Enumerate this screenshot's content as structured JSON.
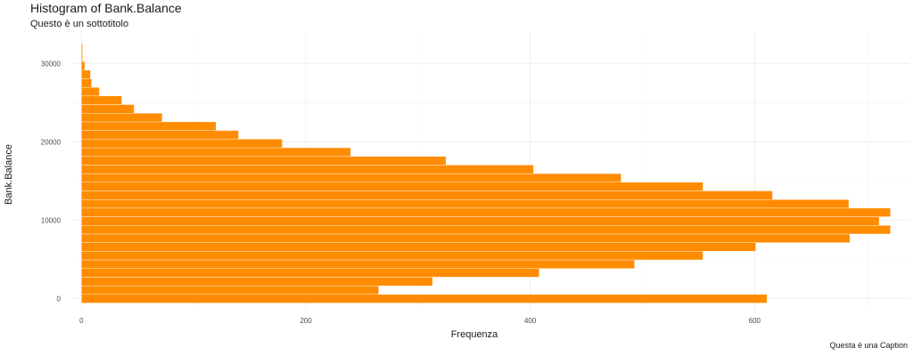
{
  "chart_data": {
    "type": "bar",
    "orientation": "horizontal",
    "title": "Histogram of Bank.Balance",
    "subtitle": "Questo è un sottotitolo",
    "caption": "Questa è una Caption",
    "xlabel": "Frequenza",
    "ylabel": "Bank.Balance",
    "xlim": [
      -9,
      738
    ],
    "ylim": [
      -1400,
      34000
    ],
    "x_ticks": [
      0,
      200,
      400,
      600
    ],
    "y_ticks": [
      0,
      10000,
      20000,
      30000
    ],
    "bin_width": 1100,
    "color": "#FF8C00",
    "bins": [
      {
        "center": 0,
        "count": 611
      },
      {
        "center": 1100,
        "count": 265
      },
      {
        "center": 2200,
        "count": 313
      },
      {
        "center": 3300,
        "count": 408
      },
      {
        "center": 4400,
        "count": 493
      },
      {
        "center": 5500,
        "count": 554
      },
      {
        "center": 6600,
        "count": 601
      },
      {
        "center": 7700,
        "count": 685
      },
      {
        "center": 8800,
        "count": 721
      },
      {
        "center": 9900,
        "count": 711
      },
      {
        "center": 11000,
        "count": 721
      },
      {
        "center": 12100,
        "count": 684
      },
      {
        "center": 13200,
        "count": 616
      },
      {
        "center": 14300,
        "count": 554
      },
      {
        "center": 15400,
        "count": 481
      },
      {
        "center": 16500,
        "count": 403
      },
      {
        "center": 17600,
        "count": 325
      },
      {
        "center": 18700,
        "count": 240
      },
      {
        "center": 19800,
        "count": 179
      },
      {
        "center": 20900,
        "count": 140
      },
      {
        "center": 22000,
        "count": 120
      },
      {
        "center": 23100,
        "count": 72
      },
      {
        "center": 24200,
        "count": 47
      },
      {
        "center": 25300,
        "count": 36
      },
      {
        "center": 26400,
        "count": 16
      },
      {
        "center": 27500,
        "count": 9
      },
      {
        "center": 28600,
        "count": 8
      },
      {
        "center": 29700,
        "count": 3
      },
      {
        "center": 30800,
        "count": 1
      },
      {
        "center": 31900,
        "count": 1
      }
    ]
  }
}
